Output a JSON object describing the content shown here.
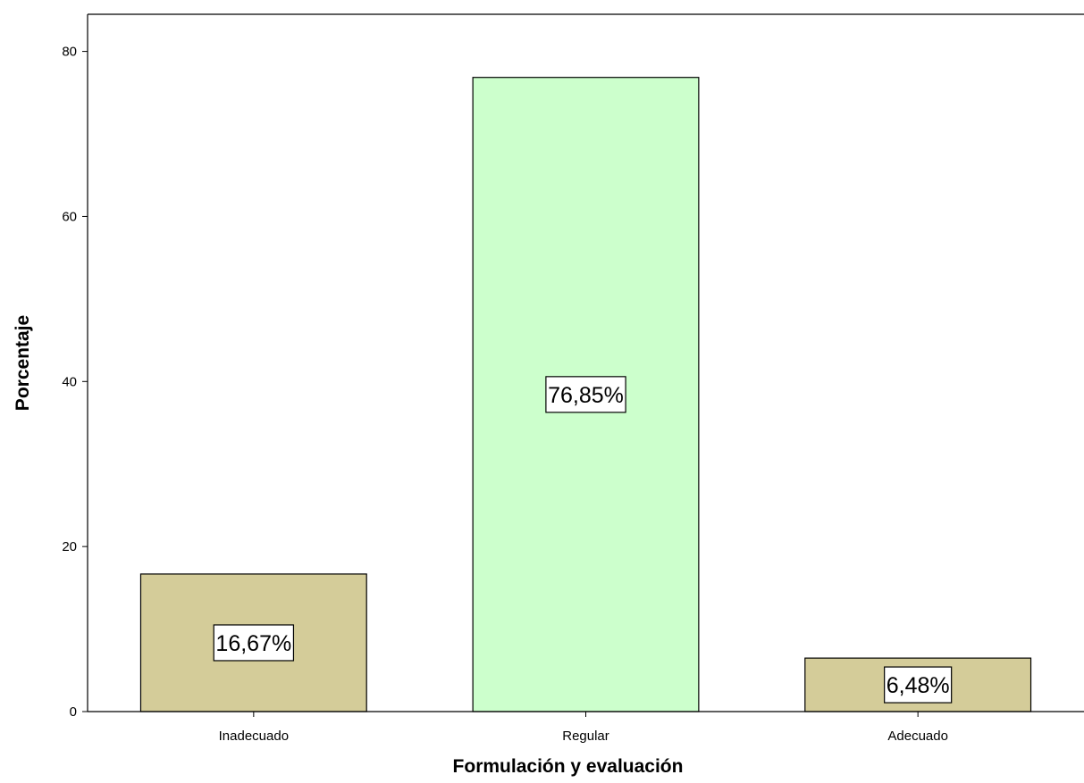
{
  "chart_data": {
    "type": "bar",
    "title": "",
    "xlabel": "Formulación y evaluación",
    "ylabel": "Porcentaje",
    "categories": [
      "Inadecuado",
      "Regular",
      "Adecuado"
    ],
    "values": [
      16.67,
      76.85,
      6.48
    ],
    "data_labels": [
      "16,67%",
      "76,85%",
      "6,48%"
    ],
    "colors": [
      "#d4cc99",
      "#ccffcc",
      "#d4cc99"
    ],
    "ylim": [
      0,
      84.5
    ],
    "yticks": [
      0,
      20,
      40,
      60,
      80
    ],
    "grid": false,
    "legend": "none"
  }
}
